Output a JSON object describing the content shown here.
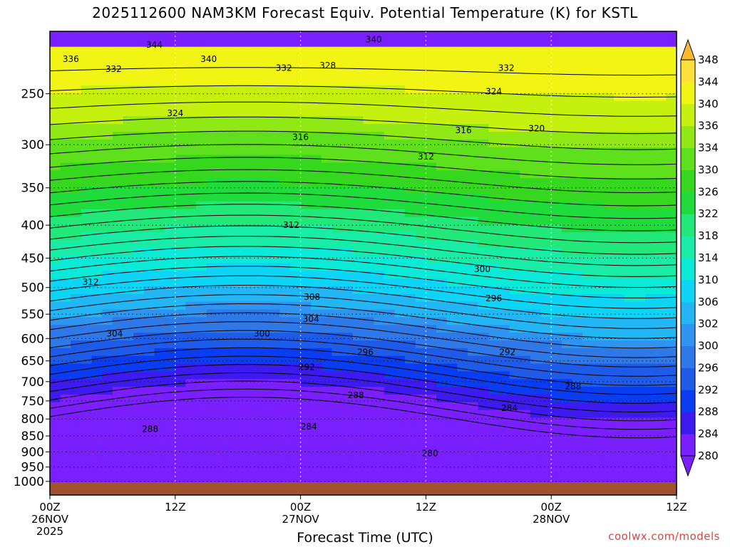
{
  "chart_data": {
    "type": "heatmap",
    "title": "2025112600 NAM3KM Forecast Equiv. Potential Temperature (K) for KSTL",
    "xlabel": "Forecast Time (UTC)",
    "ylabel": "",
    "y_scale": "log",
    "y_reversed": true,
    "y_range": [
      200,
      1050
    ],
    "y_ticks": [
      250,
      300,
      350,
      400,
      450,
      500,
      550,
      600,
      650,
      700,
      750,
      800,
      850,
      900,
      950,
      1000
    ],
    "x_range_hours": [
      0,
      60
    ],
    "x_ticks": [
      {
        "hour": 0,
        "lines": [
          "00Z",
          "26NOV",
          "2025"
        ]
      },
      {
        "hour": 12,
        "lines": [
          "12Z"
        ]
      },
      {
        "hour": 24,
        "lines": [
          "00Z",
          "27NOV"
        ]
      },
      {
        "hour": 36,
        "lines": [
          "12Z"
        ]
      },
      {
        "hour": 48,
        "lines": [
          "00Z",
          "28NOV"
        ]
      },
      {
        "hour": 60,
        "lines": [
          "12Z"
        ]
      }
    ],
    "grid": true,
    "colorbar": {
      "position": "right",
      "levels": [
        280,
        284,
        288,
        292,
        296,
        300,
        302,
        306,
        310,
        314,
        318,
        322,
        326,
        330,
        334,
        336,
        340,
        344,
        348
      ],
      "colors": [
        "#7a1fff",
        "#3d1bf0",
        "#0a3cf2",
        "#1e5be8",
        "#2e78e8",
        "#2e94f0",
        "#22b6f5",
        "#0ed4f5",
        "#0bead7",
        "#18eca6",
        "#22e87a",
        "#1fdc3c",
        "#36d81f",
        "#5fe01c",
        "#90e814",
        "#c6f00e",
        "#f2f514",
        "#fde03a",
        "#f8b830"
      ],
      "extend": "both"
    },
    "isotherms": [
      {
        "value": 280,
        "label_at": [
          36.4,
          905
        ]
      },
      {
        "value": 284,
        "label_at": [
          24.8,
          822
        ]
      },
      {
        "value": 284,
        "label_at": [
          44.0,
          770
        ]
      },
      {
        "value": 288,
        "label_at": [
          9.6,
          830
        ]
      },
      {
        "value": 288,
        "label_at": [
          29.3,
          735
        ]
      },
      {
        "value": 288,
        "label_at": [
          50.1,
          712
        ]
      },
      {
        "value": 292,
        "label_at": [
          24.6,
          665
        ]
      },
      {
        "value": 292,
        "label_at": [
          43.8,
          630
        ]
      },
      {
        "value": 296,
        "label_at": [
          30.2,
          630
        ]
      },
      {
        "value": 296,
        "label_at": [
          42.5,
          520
        ]
      },
      {
        "value": 300,
        "label_at": [
          20.3,
          590
        ]
      },
      {
        "value": 300,
        "label_at": [
          41.4,
          468
        ]
      },
      {
        "value": 304,
        "label_at": [
          6.2,
          590
        ]
      },
      {
        "value": 304,
        "label_at": [
          25.0,
          560
        ]
      },
      {
        "value": 308,
        "label_at": [
          25.1,
          517
        ]
      },
      {
        "value": 312,
        "label_at": [
          3.9,
          490
        ]
      },
      {
        "value": 312,
        "label_at": [
          23.1,
          400
        ]
      },
      {
        "value": 312,
        "label_at": [
          36.0,
          313
        ]
      },
      {
        "value": 316,
        "label_at": [
          24.0,
          292
        ]
      },
      {
        "value": 316,
        "label_at": [
          39.6,
          285
        ]
      },
      {
        "value": 320,
        "label_at": [
          46.6,
          283
        ]
      },
      {
        "value": 324,
        "label_at": [
          12.0,
          268
        ]
      },
      {
        "value": 324,
        "label_at": [
          42.5,
          248
        ]
      },
      {
        "value": 328,
        "label_at": [
          26.6,
          226
        ]
      },
      {
        "value": 332,
        "label_at": [
          6.1,
          229
        ]
      },
      {
        "value": 332,
        "label_at": [
          22.4,
          228
        ]
      },
      {
        "value": 332,
        "label_at": [
          43.7,
          228
        ]
      },
      {
        "value": 336,
        "label_at": [
          2.0,
          221
        ]
      },
      {
        "value": 340,
        "label_at": [
          15.2,
          221
        ]
      },
      {
        "value": 340,
        "label_at": [
          31.0,
          206
        ]
      },
      {
        "value": 344,
        "label_at": [
          10.0,
          210
        ]
      }
    ]
  },
  "credit": "coolwx.com/models"
}
